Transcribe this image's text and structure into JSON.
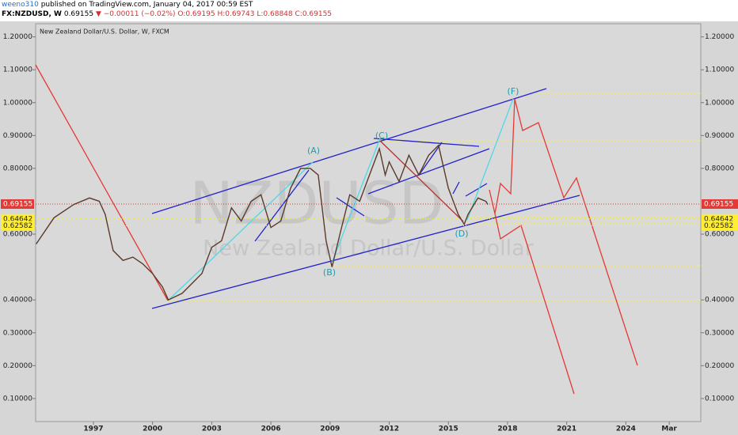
{
  "chart_data": {
    "type": "line",
    "header": {
      "author": "weeno310",
      "published": "published on TradingView.com, January 04, 2017 00:59 EST",
      "symbol": "FX:NZDUSD, W",
      "last": "0.69155",
      "change": "−0.00011 (−0.02%)",
      "open": "O:0.69195",
      "high": "H:0.69743",
      "low": "L:0.68848",
      "close": "C:0.69155"
    },
    "title": "New Zealand Dollar/U.S. Dollar, W, FXCM",
    "watermark": "NZDUSD",
    "watermark_subtitle": "New Zealand Dollar/U.S. Dollar",
    "color": "#5a3a2a",
    "x": [
      1994.1,
      1995,
      1996,
      1996.8,
      1997.3,
      1997.6,
      1998,
      1998.5,
      1999,
      1999.5,
      2000,
      2000.5,
      2000.8,
      2001.5,
      2002,
      2002.5,
      2003,
      2003.5,
      2004,
      2004.5,
      2005,
      2005.5,
      2006,
      2006.5,
      2007,
      2007.5,
      2008,
      2008.4,
      2008.8,
      2009.1,
      2009.5,
      2010,
      2010.5,
      2011,
      2011.5,
      2011.8,
      2012,
      2012.5,
      2013,
      2013.5,
      2014,
      2014.5,
      2015,
      2015.5,
      2015.8,
      2016,
      2016.5,
      2016.9,
      2017.0
    ],
    "values": [
      0.57,
      0.65,
      0.69,
      0.71,
      0.7,
      0.66,
      0.55,
      0.52,
      0.53,
      0.51,
      0.48,
      0.44,
      0.4,
      0.42,
      0.45,
      0.48,
      0.56,
      0.58,
      0.68,
      0.64,
      0.7,
      0.72,
      0.62,
      0.64,
      0.74,
      0.8,
      0.8,
      0.78,
      0.58,
      0.5,
      0.6,
      0.72,
      0.7,
      0.78,
      0.86,
      0.78,
      0.82,
      0.76,
      0.84,
      0.78,
      0.84,
      0.87,
      0.74,
      0.66,
      0.63,
      0.66,
      0.71,
      0.7,
      0.69
    ],
    "xlim": [
      1994.07,
      2027.8
    ],
    "ylim": [
      0.03,
      1.24
    ],
    "xticks": [
      {
        "value": 1997,
        "label": "1997"
      },
      {
        "value": 2000,
        "label": "2000"
      },
      {
        "value": 2003,
        "label": "2003"
      },
      {
        "value": 2006,
        "label": "2006"
      },
      {
        "value": 2009,
        "label": "2009"
      },
      {
        "value": 2012,
        "label": "2012"
      },
      {
        "value": 2015,
        "label": "2015"
      },
      {
        "value": 2018,
        "label": "2018"
      },
      {
        "value": 2021,
        "label": "2021"
      },
      {
        "value": 2024,
        "label": "2024"
      },
      {
        "value": 2026.2,
        "label": "Mar"
      }
    ],
    "yticks": [
      {
        "value": 1.2,
        "label": "1.20000"
      },
      {
        "value": 1.1,
        "label": "1.10000"
      },
      {
        "value": 1.0,
        "label": "1.00000"
      },
      {
        "value": 0.9,
        "label": "0.90000"
      },
      {
        "value": 0.8,
        "label": "0.80000"
      },
      {
        "value": 0.6,
        "label": "0.60000"
      },
      {
        "value": 0.4,
        "label": "0.40000"
      },
      {
        "value": 0.3,
        "label": "0.30000"
      },
      {
        "value": 0.2,
        "label": "0.20000"
      },
      {
        "value": 0.1,
        "label": "0.10000"
      }
    ],
    "price_levels": [
      {
        "value": 0.69155,
        "label": "0.69155",
        "color": "#e53935"
      },
      {
        "value": 0.64642,
        "label": "0.64642",
        "color": "#ffee33"
      },
      {
        "value": 0.62582,
        "label": "0.62582",
        "color": "#ffee33"
      }
    ],
    "wave_labels": [
      "(A)",
      "(B)",
      "(C)",
      "(D)",
      "(F)"
    ]
  }
}
